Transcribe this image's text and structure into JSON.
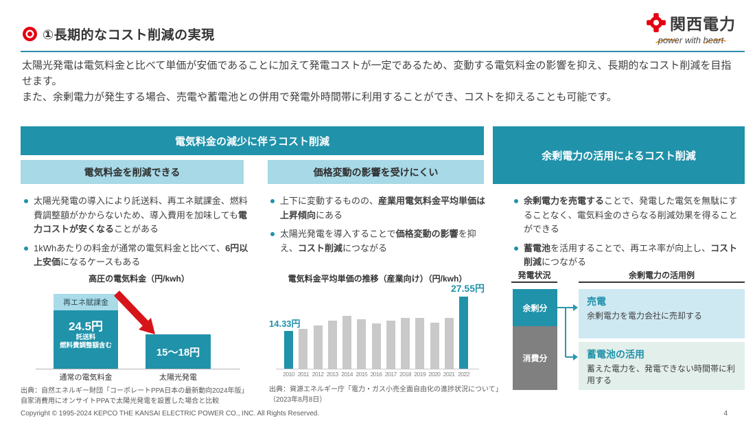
{
  "header": {
    "title": "①長期的なコスト削減の実現",
    "logo": {
      "name": "関西電力",
      "tagline": "power with heart"
    }
  },
  "intro": {
    "p1": "太陽光発電は電気料金と比べて単価が安価であることに加えて発電コストが一定であるため、変動する電気料金の影響を抑え、長期的なコスト削減を目指せます。",
    "p2": "また、余剰電力が発生する場合、売電や蓄電池との併用で発電外時間帯に利用することができ、コストを抑えることも可能です。"
  },
  "sections": {
    "left_header": "電気料金の減少に伴うコスト削減",
    "sub_left": "電気料金を削減できる",
    "sub_mid": "価格変動の影響を受けにくい",
    "right_header": "余剰電力の活用によるコスト削減"
  },
  "columns": {
    "col1": [
      [
        {
          "t": "太陽光発電の導入により託送料、再エネ賦課金、燃料費調整額がかからないため、導入費用を加味しても",
          "b": false
        },
        {
          "t": "電力コストが安くなる",
          "b": true
        },
        {
          "t": "ことがある",
          "b": false
        }
      ],
      [
        {
          "t": "1kWhあたりの料金が通常の電気料金と比べて、",
          "b": false
        },
        {
          "t": "6円以上安価",
          "b": true
        },
        {
          "t": "になるケースもある",
          "b": false
        }
      ]
    ],
    "col2": [
      [
        {
          "t": "上下に変動するものの、",
          "b": false
        },
        {
          "t": "産業用電気料金平均単価は上昇傾向",
          "b": true
        },
        {
          "t": "にある",
          "b": false
        }
      ],
      [
        {
          "t": "太陽光発電を導入することで",
          "b": false
        },
        {
          "t": "価格変動の影響",
          "b": true
        },
        {
          "t": "を抑え、",
          "b": false
        },
        {
          "t": "コスト削減",
          "b": true
        },
        {
          "t": "につながる",
          "b": false
        }
      ]
    ],
    "col3": [
      [
        {
          "t": "余剰電力を売電する",
          "b": true
        },
        {
          "t": "ことで、発電した電気を無駄にすることなく、電気料金のさらなる削減効果を得ることができる",
          "b": false
        }
      ],
      [
        {
          "t": "蓄電池",
          "b": true
        },
        {
          "t": "を活用することで、再エネ率が向上し、",
          "b": false
        },
        {
          "t": "コスト削減",
          "b": true
        },
        {
          "t": "につながる",
          "b": false
        }
      ]
    ]
  },
  "chart_data": [
    {
      "type": "bar",
      "title": "高圧の電気料金（円/kwh）",
      "categories": [
        "通常の電気料金",
        "太陽光発電"
      ],
      "bars": [
        {
          "category": "通常の電気料金",
          "value": 24.5,
          "value_label": "24.5円",
          "sub_labels": [
            "託送料",
            "燃料費調整額含む"
          ],
          "top_segment": "再エネ賦課金"
        },
        {
          "category": "太陽光発電",
          "value_label": "15～18円",
          "value_range": [
            15,
            18
          ]
        }
      ],
      "annotation": "red decrease arrow from normal tariff to solar"
    },
    {
      "type": "bar",
      "title": "電気料金平均単価の推移（産業向け）（円/kwh）",
      "categories": [
        "2010",
        "2011",
        "2012",
        "2013",
        "2014",
        "2015",
        "2016",
        "2017",
        "2018",
        "2019",
        "2020",
        "2021",
        "2022"
      ],
      "values": [
        14.33,
        15.1,
        16.4,
        18.3,
        20.3,
        18.9,
        17.3,
        18.3,
        19.5,
        19.4,
        17.7,
        19.3,
        27.55
      ],
      "highlight_indices": [
        0,
        12
      ],
      "first_label": "14.33円",
      "last_label": "27.55円",
      "ylim": [
        0,
        29
      ],
      "bar_color": "#c9c9c9",
      "highlight_color": "#2092aa",
      "grid": false,
      "legend": false
    }
  ],
  "diagram": {
    "left_axis_title": "発電状況",
    "right_title": "余剰電力の活用例",
    "stack": [
      {
        "label": "余剰分",
        "color": "#2092aa"
      },
      {
        "label": "消費分",
        "color": "#808080"
      }
    ],
    "options": [
      {
        "title": "売電",
        "desc": "余剰電力を電力会社に売却する"
      },
      {
        "title": "蓄電池の活用",
        "desc": "蓄えた電力を、発電できない時間帯に利用する"
      }
    ]
  },
  "sources": {
    "chart1_line1": "出典：自然エネルギー財団「コーポレートPPA日本の最新動向2024年版」",
    "chart1_line2": "自家消費用にオンサイトPPAで太陽光発電を設置した場合と比較",
    "chart2_line1": "出典：資源エネルギー庁「電力・ガス小売全面自由化の進捗状況について」",
    "chart2_line2": "（2023年8月8日）"
  },
  "footer": {
    "copyright": "Copyright © 1995-2024 KEPCO THE KANSAI ELECTRIC POWER CO., INC. All Rights Reserved.",
    "page_number": "4"
  },
  "colors": {
    "accent_teal": "#2092aa",
    "light_blue": "#a7d9e6",
    "brand_red": "#e60012",
    "arrow_red": "#d7141a",
    "gray_bar": "#c9c9c9",
    "option_box1_bg": "#cfe9f3",
    "option_box2_bg": "#e2efeb"
  }
}
